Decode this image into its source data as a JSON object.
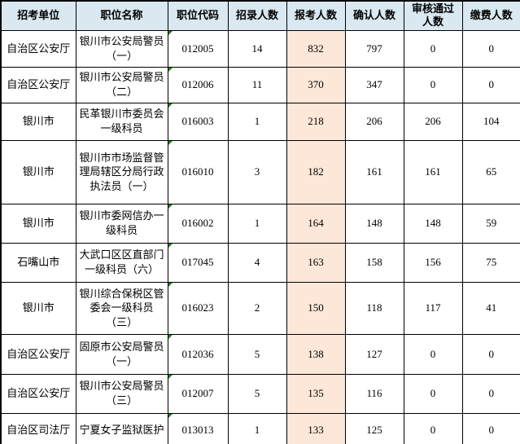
{
  "table": {
    "columns": [
      {
        "key": "unit",
        "label": "招考单位"
      },
      {
        "key": "position",
        "label": "职位名称"
      },
      {
        "key": "code",
        "label": "职位代码"
      },
      {
        "key": "recruit",
        "label": "招录人数"
      },
      {
        "key": "applicants",
        "label": "报考人数"
      },
      {
        "key": "confirmed",
        "label": "确认人数"
      },
      {
        "key": "approved",
        "label": "审核通过人数"
      },
      {
        "key": "paid",
        "label": "缴费人数"
      }
    ],
    "highlight_column": "报考人数",
    "rows": [
      {
        "unit": "自治区公安厅",
        "position": "银川市公安局警员（一）",
        "code": "012005",
        "recruit": "14",
        "applicants": "832",
        "confirmed": "797",
        "approved": "0",
        "paid": "0"
      },
      {
        "unit": "自治区公安厅",
        "position": "银川市公安局警员（二）",
        "code": "012006",
        "recruit": "11",
        "applicants": "370",
        "confirmed": "347",
        "approved": "0",
        "paid": "0"
      },
      {
        "unit": "银川市",
        "position": "民革银川市委员会一级科员",
        "code": "016003",
        "recruit": "1",
        "applicants": "218",
        "confirmed": "206",
        "approved": "206",
        "paid": "104"
      },
      {
        "unit": "银川市",
        "position": "银川市市场监督管理局辖区分局行政执法员（一）",
        "code": "016010",
        "recruit": "3",
        "applicants": "182",
        "confirmed": "161",
        "approved": "161",
        "paid": "65"
      },
      {
        "unit": "银川市",
        "position": "银川市委网信办一级科员",
        "code": "016002",
        "recruit": "1",
        "applicants": "164",
        "confirmed": "148",
        "approved": "148",
        "paid": "59"
      },
      {
        "unit": "石嘴山市",
        "position": "大武口区区直部门一级科员（六）",
        "code": "017045",
        "recruit": "4",
        "applicants": "163",
        "confirmed": "158",
        "approved": "156",
        "paid": "75"
      },
      {
        "unit": "银川市",
        "position": "银川综合保税区管委会一级科员（三）",
        "code": "016023",
        "recruit": "2",
        "applicants": "150",
        "confirmed": "118",
        "approved": "117",
        "paid": "41"
      },
      {
        "unit": "自治区公安厅",
        "position": "固原市公安局警员（一）",
        "code": "012036",
        "recruit": "5",
        "applicants": "138",
        "confirmed": "127",
        "approved": "0",
        "paid": "0"
      },
      {
        "unit": "自治区公安厅",
        "position": "银川市公安局警员（三）",
        "code": "012007",
        "recruit": "5",
        "applicants": "135",
        "confirmed": "116",
        "approved": "0",
        "paid": "0"
      },
      {
        "unit": "自治区司法厅",
        "position": "宁夏女子监狱医护",
        "code": "013013",
        "recruit": "1",
        "applicants": "133",
        "confirmed": "125",
        "approved": "0",
        "paid": "0"
      }
    ]
  },
  "icons": {
    "code_error_flag": "green-corner-triangle"
  },
  "colors": {
    "header_bg": "#d9e8f1",
    "highlight_bg": "#fde7d8",
    "grid_border": "#000000",
    "error_flag": "#1e7e1e"
  }
}
